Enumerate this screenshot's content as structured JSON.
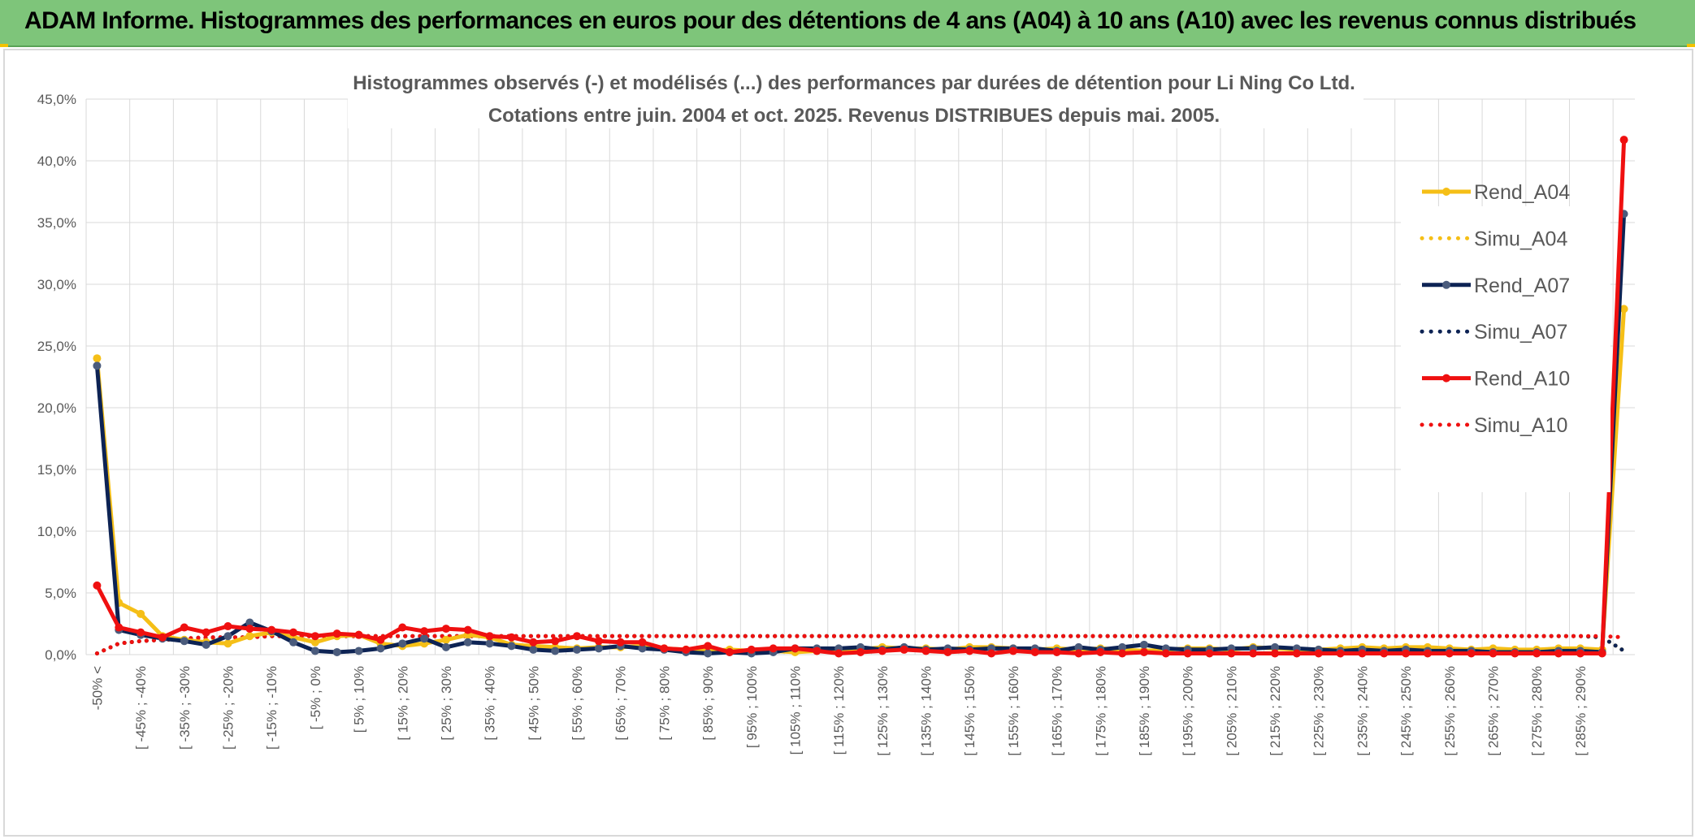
{
  "banner": {
    "title": "ADAM Informe. Histogrammes des performances en euros pour des détentions de 4 ans (A04) à 10 ans (A10) avec les revenus connus distribués"
  },
  "chart_data": {
    "type": "line",
    "title": "Histogrammes observés (-) et modélisés (...) des performances par durées de détention pour Li Ning Co Ltd.",
    "subtitle": "Cotations entre juin. 2004 et oct. 2025. Revenus DISTRIBUES depuis mai. 2005.",
    "ylim": [
      0,
      45
    ],
    "ytick_labels": [
      "0,0%",
      "5,0%",
      "10,0%",
      "15,0%",
      "20,0%",
      "25,0%",
      "30,0%",
      "35,0%",
      "40,0%",
      "45,0%"
    ],
    "category_labels": [
      "-50% <",
      "[ -45% ; -40%",
      "[ -35% ; -30%",
      "[ -25% ; -20%",
      "[ -15% ; -10%",
      "[ -5% ; 0%",
      "[ 5% ; 10%",
      "[ 15% ; 20%",
      "[ 25% ; 30%",
      "[ 35% ; 40%",
      "[ 45% ; 50%",
      "[ 55% ; 60%",
      "[ 65% ; 70%",
      "[ 75% ; 80%",
      "[ 85% ; 90%",
      "[ 95% ; 100%",
      "[ 105% ; 110%",
      "[ 115% ; 120%",
      "[ 125% ; 130%",
      "[ 135% ; 140%",
      "[ 145% ; 150%",
      "[ 155% ; 160%",
      "[ 165% ; 170%",
      "[ 175% ; 180%",
      "[ 185% ; 190%",
      "[ 195% ; 200%",
      "[ 205% ; 210%",
      "[ 215% ; 220%",
      "[ 225% ; 230%",
      "[ 235% ; 240%",
      "[ 245% ; 250%",
      "[ 255% ; 260%",
      "[ 265% ; 270%",
      "[ 275% ; 280%",
      "[ 285% ; 290%"
    ],
    "n_points": 71,
    "series": [
      {
        "name": "Rend_A04",
        "style": "solid",
        "color": "#f5bf17",
        "values": [
          24.0,
          4.2,
          3.3,
          1.5,
          1.2,
          1.0,
          0.9,
          1.5,
          1.8,
          1.4,
          1.0,
          1.5,
          1.6,
          0.9,
          0.7,
          0.9,
          1.2,
          1.6,
          1.4,
          0.8,
          0.7,
          0.6,
          0.5,
          0.6,
          0.6,
          0.7,
          0.5,
          0.4,
          0.3,
          0.4,
          0.3,
          0.3,
          0.2,
          0.3,
          0.3,
          0.4,
          0.6,
          0.5,
          0.5,
          0.4,
          0.6,
          0.6,
          0.5,
          0.4,
          0.5,
          0.4,
          0.5,
          0.4,
          0.3,
          0.4,
          0.5,
          0.5,
          0.4,
          0.6,
          0.5,
          0.4,
          0.4,
          0.5,
          0.6,
          0.5,
          0.6,
          0.6,
          0.5,
          0.4,
          0.5,
          0.4,
          0.4,
          0.5,
          0.5,
          0.4,
          28.0
        ]
      },
      {
        "name": "Simu_A04",
        "style": "dotted",
        "color": "#f5bf17",
        "values": [
          0.1,
          0.9,
          1.1,
          1.2,
          1.3,
          1.3,
          1.4,
          1.4,
          1.5,
          1.5,
          1.5,
          1.5,
          1.5,
          1.5,
          1.5,
          1.5,
          1.5,
          1.5,
          1.5,
          1.5,
          1.5,
          1.5,
          1.5,
          1.5,
          1.5,
          1.5,
          1.5,
          1.5,
          1.5,
          1.5,
          1.5,
          1.5,
          1.5,
          1.5,
          1.5,
          1.5,
          1.5,
          1.5,
          1.5,
          1.5,
          1.5,
          1.5,
          1.5,
          1.5,
          1.5,
          1.5,
          1.5,
          1.5,
          1.5,
          1.5,
          1.5,
          1.5,
          1.5,
          1.5,
          1.5,
          1.5,
          1.5,
          1.5,
          1.5,
          1.5,
          1.5,
          1.5,
          1.5,
          1.5,
          1.5,
          1.5,
          1.5,
          1.5,
          1.5,
          1.4,
          0.3
        ]
      },
      {
        "name": "Rend_A07",
        "style": "solid",
        "color": "#0d2354",
        "values": [
          23.4,
          2.0,
          1.6,
          1.3,
          1.1,
          0.8,
          1.5,
          2.6,
          1.9,
          1.0,
          0.3,
          0.2,
          0.3,
          0.5,
          0.9,
          1.3,
          0.6,
          1.0,
          0.9,
          0.7,
          0.4,
          0.3,
          0.4,
          0.5,
          0.7,
          0.5,
          0.4,
          0.2,
          0.1,
          0.2,
          0.1,
          0.2,
          0.5,
          0.5,
          0.5,
          0.6,
          0.4,
          0.6,
          0.4,
          0.5,
          0.4,
          0.5,
          0.5,
          0.5,
          0.3,
          0.6,
          0.4,
          0.6,
          0.8,
          0.5,
          0.4,
          0.4,
          0.5,
          0.5,
          0.6,
          0.5,
          0.4,
          0.3,
          0.4,
          0.3,
          0.4,
          0.3,
          0.3,
          0.3,
          0.2,
          0.2,
          0.2,
          0.3,
          0.3,
          0.2,
          35.7
        ]
      },
      {
        "name": "Simu_A07",
        "style": "dotted",
        "color": "#0d2354",
        "values": [
          0.1,
          0.9,
          1.1,
          1.2,
          1.3,
          1.4,
          1.4,
          1.4,
          1.5,
          1.5,
          1.5,
          1.5,
          1.5,
          1.5,
          1.5,
          1.5,
          1.5,
          1.5,
          1.5,
          1.5,
          1.5,
          1.5,
          1.5,
          1.5,
          1.5,
          1.5,
          1.5,
          1.5,
          1.5,
          1.5,
          1.5,
          1.5,
          1.5,
          1.5,
          1.5,
          1.5,
          1.5,
          1.5,
          1.5,
          1.5,
          1.5,
          1.5,
          1.5,
          1.5,
          1.5,
          1.5,
          1.5,
          1.5,
          1.5,
          1.5,
          1.5,
          1.5,
          1.5,
          1.5,
          1.5,
          1.5,
          1.5,
          1.5,
          1.5,
          1.5,
          1.5,
          1.5,
          1.5,
          1.5,
          1.5,
          1.5,
          1.5,
          1.5,
          1.5,
          1.4,
          0.3
        ]
      },
      {
        "name": "Rend_A10",
        "style": "solid",
        "color": "#ef1010",
        "values": [
          5.6,
          2.2,
          1.8,
          1.4,
          2.2,
          1.8,
          2.3,
          2.1,
          2.0,
          1.8,
          1.5,
          1.7,
          1.6,
          1.2,
          2.2,
          1.9,
          2.1,
          2.0,
          1.5,
          1.4,
          1.0,
          1.1,
          1.5,
          1.1,
          1.0,
          1.0,
          0.5,
          0.4,
          0.7,
          0.2,
          0.4,
          0.5,
          0.5,
          0.3,
          0.1,
          0.2,
          0.3,
          0.4,
          0.3,
          0.2,
          0.3,
          0.1,
          0.3,
          0.2,
          0.2,
          0.1,
          0.2,
          0.1,
          0.2,
          0.1,
          0.1,
          0.1,
          0.1,
          0.1,
          0.1,
          0.1,
          0.1,
          0.1,
          0.1,
          0.1,
          0.1,
          0.1,
          0.1,
          0.1,
          0.1,
          0.1,
          0.1,
          0.1,
          0.1,
          0.1,
          41.7
        ]
      },
      {
        "name": "Simu_A10",
        "style": "dotted",
        "color": "#ef1010",
        "values": [
          0.1,
          0.9,
          1.1,
          1.2,
          1.3,
          1.4,
          1.4,
          1.4,
          1.5,
          1.5,
          1.5,
          1.5,
          1.5,
          1.5,
          1.5,
          1.5,
          1.5,
          1.5,
          1.5,
          1.5,
          1.5,
          1.5,
          1.5,
          1.5,
          1.5,
          1.5,
          1.5,
          1.5,
          1.5,
          1.5,
          1.5,
          1.5,
          1.5,
          1.5,
          1.5,
          1.5,
          1.5,
          1.5,
          1.5,
          1.5,
          1.5,
          1.5,
          1.5,
          1.5,
          1.5,
          1.5,
          1.5,
          1.5,
          1.5,
          1.5,
          1.5,
          1.5,
          1.5,
          1.5,
          1.5,
          1.5,
          1.5,
          1.5,
          1.5,
          1.5,
          1.5,
          1.5,
          1.5,
          1.5,
          1.5,
          1.5,
          1.5,
          1.5,
          1.5,
          1.5,
          1.4
        ]
      }
    ],
    "legend_position": "right"
  }
}
